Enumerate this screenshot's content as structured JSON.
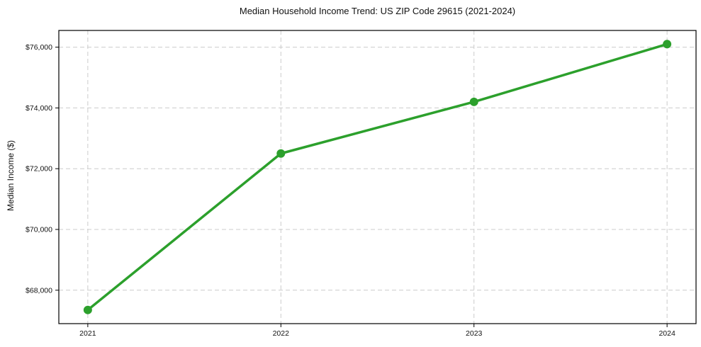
{
  "chart_data": {
    "type": "line",
    "title": "Median Household Income Trend: US ZIP Code 29615 (2021-2024)",
    "xlabel": "",
    "ylabel": "Median Income ($)",
    "x": [
      2021,
      2022,
      2023,
      2024
    ],
    "x_tick_labels": [
      "2021",
      "2022",
      "2023",
      "2024"
    ],
    "series": [
      {
        "name": "Median Household Income",
        "values": [
          67350,
          72500,
          74200,
          76100
        ]
      }
    ],
    "y_ticks": [
      68000,
      70000,
      72000,
      74000,
      76000
    ],
    "y_tick_labels": [
      "$68,000",
      "$70,000",
      "$72,000",
      "$74,000",
      "$76,000"
    ],
    "xlim": [
      2020.85,
      2024.15
    ],
    "ylim": [
      66900,
      76550
    ],
    "grid": true,
    "grid_style": "dashed",
    "legend": "none",
    "colors": {
      "line": "#2ca02c",
      "marker": "#2ca02c",
      "grid": "#cccccc",
      "axis_border": "#000000",
      "text": "#111111",
      "background": "#ffffff"
    }
  }
}
